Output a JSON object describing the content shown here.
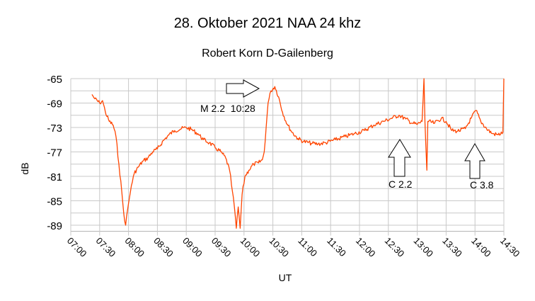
{
  "chart_data": {
    "type": "line",
    "title": "28. Oktober 2021 NAA 24 khz",
    "subtitle": "Robert Korn D-Gailenberg",
    "xlabel": "UT",
    "ylabel": "dB",
    "xlim": [
      "07:00",
      "14:30"
    ],
    "ylim": [
      -90,
      -65
    ],
    "x_ticks": [
      "07:00",
      "07:30",
      "08:00",
      "08:30",
      "09:00",
      "09:30",
      "10:00",
      "10:30",
      "11:00",
      "11:30",
      "12:00",
      "12:30",
      "13:00",
      "13:30",
      "14:00",
      "14:30"
    ],
    "y_ticks": [
      -65,
      -69,
      -73,
      -77,
      -81,
      -85,
      -89
    ],
    "grid": true,
    "series_color": "#ff4500",
    "series": [
      {
        "points": [
          [
            "07:22",
            -67.6
          ],
          [
            "07:25",
            -68.3
          ],
          [
            "07:30",
            -69.0
          ],
          [
            "07:33",
            -68.6
          ],
          [
            "07:36",
            -70.5
          ],
          [
            "07:40",
            -72.0
          ],
          [
            "07:44",
            -72.6
          ],
          [
            "07:47",
            -74.5
          ],
          [
            "07:50",
            -79.0
          ],
          [
            "07:53",
            -83.5
          ],
          [
            "07:55",
            -87.0
          ],
          [
            "07:57",
            -89.0
          ],
          [
            "07:59",
            -86.5
          ],
          [
            "08:01",
            -84.5
          ],
          [
            "08:03",
            -82.5
          ],
          [
            "08:06",
            -80.5
          ],
          [
            "08:10",
            -79.5
          ],
          [
            "08:15",
            -78.5
          ],
          [
            "08:20",
            -78.0
          ],
          [
            "08:25",
            -77.0
          ],
          [
            "08:30",
            -76.5
          ],
          [
            "08:37",
            -75.0
          ],
          [
            "08:42",
            -74.2
          ],
          [
            "08:48",
            -73.5
          ],
          [
            "08:55",
            -73.2
          ],
          [
            "09:00",
            -73.0
          ],
          [
            "09:05",
            -73.3
          ],
          [
            "09:12",
            -74.0
          ],
          [
            "09:18",
            -75.0
          ],
          [
            "09:24",
            -75.5
          ],
          [
            "09:30",
            -76.3
          ],
          [
            "09:36",
            -77.0
          ],
          [
            "09:41",
            -78.0
          ],
          [
            "09:45",
            -80.0
          ],
          [
            "09:48",
            -83.5
          ],
          [
            "09:50",
            -86.0
          ],
          [
            "09:52",
            -89.5
          ],
          [
            "09:54",
            -86.0
          ],
          [
            "09:56",
            -89.5
          ],
          [
            "09:58",
            -84.0
          ],
          [
            "10:01",
            -81.0
          ],
          [
            "10:05",
            -80.0
          ],
          [
            "10:10",
            -79.0
          ],
          [
            "10:15",
            -78.8
          ],
          [
            "10:19",
            -78.3
          ],
          [
            "10:21",
            -77.0
          ],
          [
            "10:23",
            -73.0
          ],
          [
            "10:25",
            -69.0
          ],
          [
            "10:28",
            -67.0
          ],
          [
            "10:32",
            -66.3
          ],
          [
            "10:36",
            -68.0
          ],
          [
            "10:40",
            -70.5
          ],
          [
            "10:45",
            -72.5
          ],
          [
            "10:50",
            -73.8
          ],
          [
            "10:56",
            -74.8
          ],
          [
            "11:02",
            -75.3
          ],
          [
            "11:10",
            -75.6
          ],
          [
            "11:17",
            -75.7
          ],
          [
            "11:25",
            -75.5
          ],
          [
            "11:35",
            -75.0
          ],
          [
            "11:45",
            -74.5
          ],
          [
            "11:55",
            -74.0
          ],
          [
            "12:05",
            -73.5
          ],
          [
            "12:15",
            -72.6
          ],
          [
            "12:25",
            -72.0
          ],
          [
            "12:33",
            -71.5
          ],
          [
            "12:41",
            -71.0
          ],
          [
            "12:48",
            -71.6
          ],
          [
            "12:55",
            -72.3
          ],
          [
            "13:00",
            -72.5
          ],
          [
            "13:05",
            -72.0
          ],
          [
            "13:07",
            -65.0
          ],
          [
            "13:08",
            -72.0
          ],
          [
            "13:10",
            -80.0
          ],
          [
            "13:11",
            -72.0
          ],
          [
            "13:18",
            -72.3
          ],
          [
            "13:25",
            -71.5
          ],
          [
            "13:30",
            -72.0
          ],
          [
            "13:36",
            -73.5
          ],
          [
            "13:42",
            -73.6
          ],
          [
            "13:50",
            -73.2
          ],
          [
            "13:56",
            -71.5
          ],
          [
            "14:01",
            -70.2
          ],
          [
            "14:06",
            -72.0
          ],
          [
            "14:12",
            -73.2
          ],
          [
            "14:18",
            -74.0
          ],
          [
            "14:24",
            -74.2
          ],
          [
            "14:29",
            -73.8
          ],
          [
            "14:30",
            -65.0
          ]
        ]
      }
    ],
    "annotations": [
      {
        "text": "M 2.2  10:28",
        "arrow": "right"
      },
      {
        "text": "C 2.2",
        "arrow": "up"
      },
      {
        "text": "C 3.8",
        "arrow": "up"
      }
    ]
  }
}
